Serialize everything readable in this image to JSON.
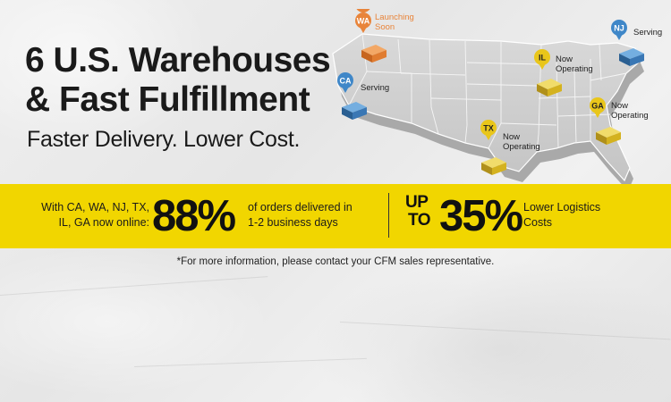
{
  "headline": {
    "line1": "6 U.S. Warehouses",
    "line2": "& Fast Fulfillment",
    "subline": "Faster Delivery. Lower Cost."
  },
  "map": {
    "pins": [
      {
        "code": "WA",
        "label_lines": [
          "Launching",
          "Soon"
        ],
        "color": "#e8843a",
        "status": "launching"
      },
      {
        "code": "CA",
        "label_lines": [
          "Serving"
        ],
        "color": "#3f87c8",
        "status": "serving"
      },
      {
        "code": "NJ",
        "label_lines": [
          "Serving"
        ],
        "color": "#3f87c8",
        "status": "serving"
      },
      {
        "code": "IL",
        "label_lines": [
          "Now",
          "Operating"
        ],
        "color": "#e9c61a",
        "status": "operating"
      },
      {
        "code": "GA",
        "label_lines": [
          "Now",
          "Operating"
        ],
        "color": "#e9c61a",
        "status": "operating"
      },
      {
        "code": "TX",
        "label_lines": [
          "Now",
          "Operating"
        ],
        "color": "#e9c61a",
        "status": "operating"
      }
    ]
  },
  "band": {
    "left_text_line1": "With CA, WA, NJ, TX,",
    "left_text_line2": "IL, GA now online:",
    "percent1": "88%",
    "desc_line1": "of orders delivered in",
    "desc_line2": "1-2 business days",
    "up": "UP",
    "to": "TO",
    "percent2": "35%",
    "right_line1": "Lower Logistics",
    "right_line2": "Costs"
  },
  "footnote": "*For more information, please contact your CFM sales representative.",
  "colors": {
    "band": "#f1d600",
    "warehouse_orange": "#e8843a",
    "warehouse_blue": "#3f87c8",
    "warehouse_yellow": "#e9c61a"
  }
}
